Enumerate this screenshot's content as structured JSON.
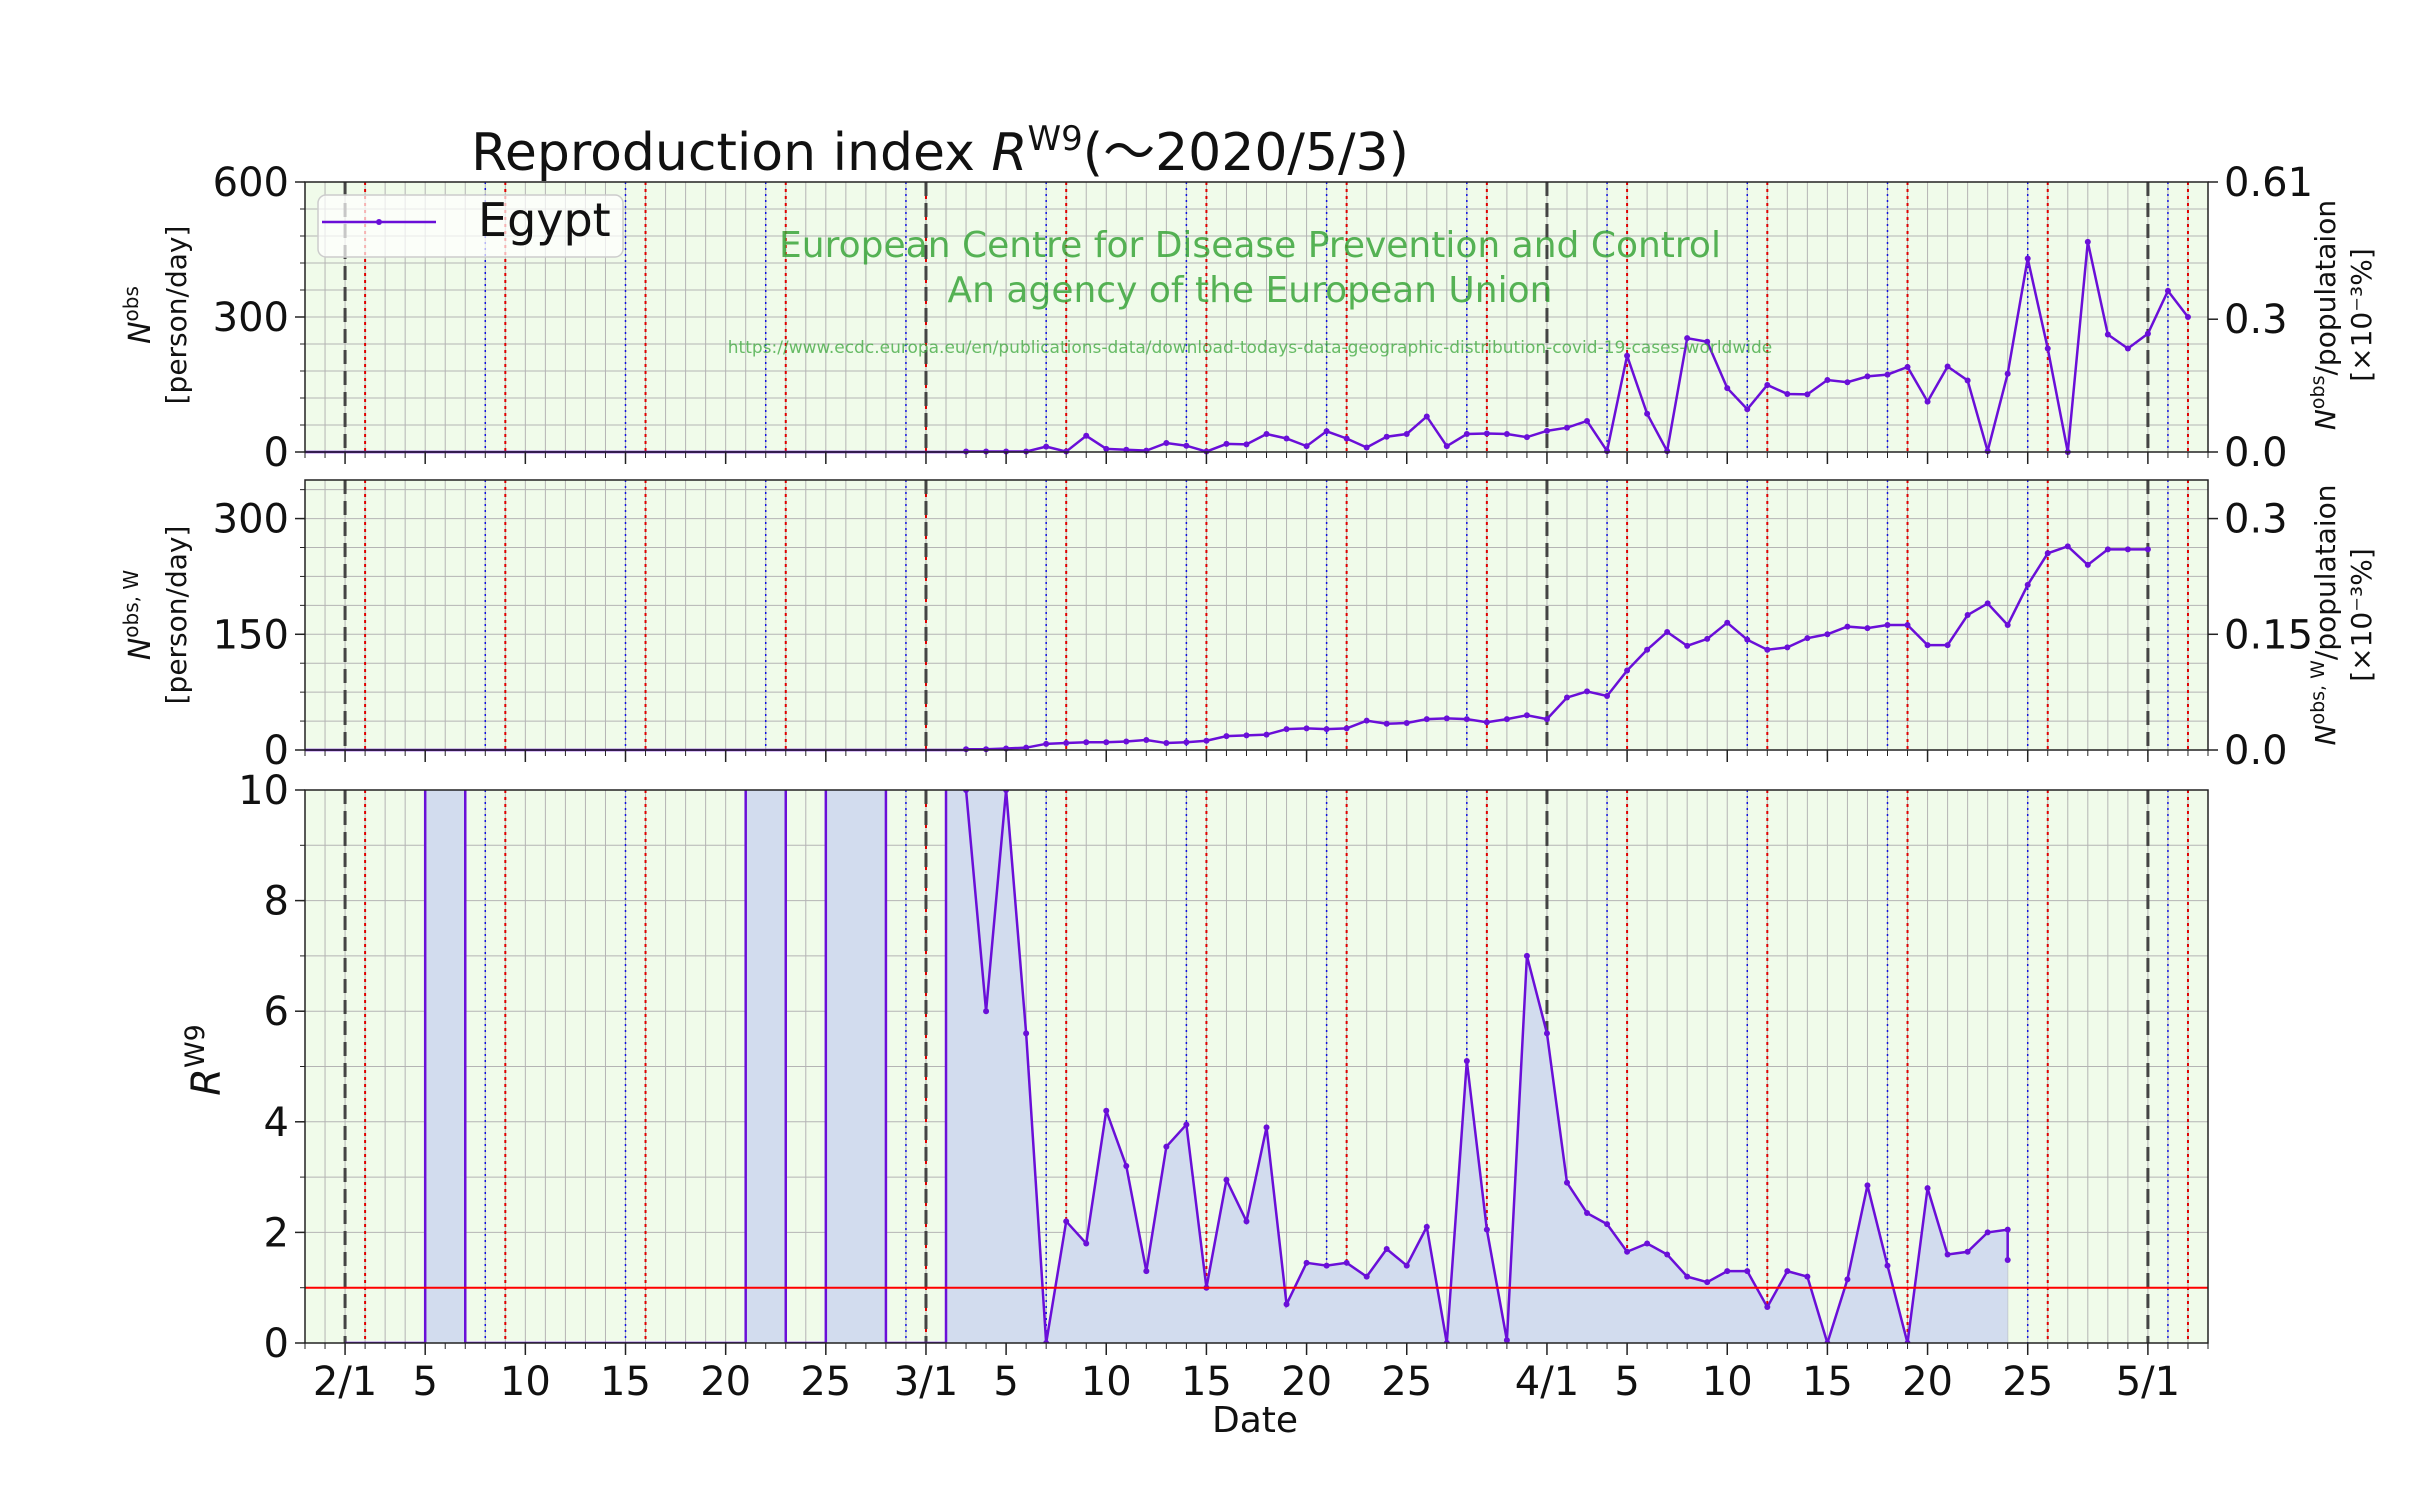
{
  "title": {
    "prefix": "Reproduction index ",
    "var": "R",
    "sup": "W9",
    "suffix": "(～2020/5/3)"
  },
  "legend": {
    "label": "Egypt"
  },
  "watermark": {
    "line1": "European Centre for Disease Prevention and Control",
    "line2": "An agency of the European Union",
    "url": "https://www.ecdc.europa.eu/en/publications-data/download-todays-data-geographic-distribution-covid-19-cases-worldwide"
  },
  "panel1": {
    "ylabel_var": "N",
    "ylabel_sup": "obs",
    "ylabel_unit": "[person/day]",
    "y2label_var": "N",
    "y2label_sup": "obs",
    "y2label_rest": "/populataion",
    "y2label_unit": "[×10⁻³%]",
    "yticks": [
      "0",
      "300",
      "600"
    ],
    "y2ticks": [
      "0.0",
      "0.3",
      "0.61"
    ]
  },
  "panel2": {
    "ylabel_var": "N",
    "ylabel_sup": "obs, W",
    "ylabel_unit": "[person/day]",
    "y2label_var": "N",
    "y2label_sup": "obs, W",
    "y2label_rest": "/populataion",
    "y2label_unit": "[×10⁻³%]",
    "yticks": [
      "0",
      "150",
      "300"
    ],
    "y2ticks": [
      "0.0",
      "0.15",
      "0.3"
    ]
  },
  "panel3": {
    "ylabel_var": "R",
    "ylabel_sup": "W9",
    "yticks": [
      "0",
      "2",
      "4",
      "6",
      "8",
      "10"
    ]
  },
  "xaxis": {
    "label": "Date",
    "ticks": [
      {
        "date": "2020-02-01",
        "label": "2/1"
      },
      {
        "date": "2020-02-05",
        "label": "5"
      },
      {
        "date": "2020-02-10",
        "label": "10"
      },
      {
        "date": "2020-02-15",
        "label": "15"
      },
      {
        "date": "2020-02-20",
        "label": "20"
      },
      {
        "date": "2020-02-25",
        "label": "25"
      },
      {
        "date": "2020-03-01",
        "label": "3/1"
      },
      {
        "date": "2020-03-05",
        "label": "5"
      },
      {
        "date": "2020-03-10",
        "label": "10"
      },
      {
        "date": "2020-03-15",
        "label": "15"
      },
      {
        "date": "2020-03-20",
        "label": "20"
      },
      {
        "date": "2020-03-25",
        "label": "25"
      },
      {
        "date": "2020-04-01",
        "label": "4/1"
      },
      {
        "date": "2020-04-05",
        "label": "5"
      },
      {
        "date": "2020-04-10",
        "label": "10"
      },
      {
        "date": "2020-04-15",
        "label": "15"
      },
      {
        "date": "2020-04-20",
        "label": "20"
      },
      {
        "date": "2020-04-25",
        "label": "25"
      },
      {
        "date": "2020-05-01",
        "label": "5/1"
      }
    ]
  },
  "colors": {
    "line": "#6a0fd8",
    "plot_bg": "#f0fbea",
    "grid": "#b4b4b4",
    "fill": "#d2dcee",
    "fill_edge": "#6a0fd8",
    "threshold": "#ff0000",
    "red_vline": "#e00000",
    "blue_vline": "#1010e0",
    "month_vline": "#444444",
    "watermark": "#3aa53a"
  },
  "chart_data": [
    {
      "type": "line",
      "panel": "top",
      "series_name": "Egypt",
      "ylim": [
        0,
        600
      ],
      "y2lim": [
        0,
        0.61
      ],
      "dates": [
        "2020-03-03",
        "2020-03-04",
        "2020-03-05",
        "2020-03-06",
        "2020-03-07",
        "2020-03-08",
        "2020-03-09",
        "2020-03-10",
        "2020-03-11",
        "2020-03-12",
        "2020-03-13",
        "2020-03-14",
        "2020-03-15",
        "2020-03-16",
        "2020-03-17",
        "2020-03-18",
        "2020-03-19",
        "2020-03-20",
        "2020-03-21",
        "2020-03-22",
        "2020-03-23",
        "2020-03-24",
        "2020-03-25",
        "2020-03-26",
        "2020-03-27",
        "2020-03-28",
        "2020-03-29",
        "2020-03-30",
        "2020-03-31",
        "2020-04-01",
        "2020-04-02",
        "2020-04-03",
        "2020-04-04",
        "2020-04-05",
        "2020-04-06",
        "2020-04-07",
        "2020-04-08",
        "2020-04-09",
        "2020-04-10",
        "2020-04-11",
        "2020-04-12",
        "2020-04-13",
        "2020-04-14",
        "2020-04-15",
        "2020-04-16",
        "2020-04-17",
        "2020-04-18",
        "2020-04-19",
        "2020-04-20",
        "2020-04-21",
        "2020-04-22",
        "2020-04-23",
        "2020-04-24",
        "2020-04-25",
        "2020-04-26",
        "2020-04-27",
        "2020-04-28",
        "2020-04-29",
        "2020-04-30",
        "2020-05-01",
        "2020-05-02",
        "2020-05-03"
      ],
      "values": [
        1,
        1,
        1,
        1,
        12,
        1,
        36,
        7,
        5,
        3,
        20,
        14,
        1,
        18,
        17,
        40,
        30,
        13,
        46,
        30,
        10,
        34,
        40,
        79,
        13,
        40,
        41,
        40,
        33,
        47,
        54,
        69,
        2,
        214,
        85,
        2,
        253,
        245,
        142,
        95,
        149,
        129,
        128,
        160,
        155,
        168,
        172,
        189,
        112,
        190,
        159,
        2,
        174,
        430,
        230,
        0,
        467,
        261,
        230,
        263,
        358,
        300
      ]
    },
    {
      "type": "line",
      "panel": "middle",
      "series_name": "Egypt",
      "ylim": [
        0,
        350
      ],
      "y2lim": [
        0,
        0.35
      ],
      "dates": [
        "2020-03-03",
        "2020-03-04",
        "2020-03-05",
        "2020-03-06",
        "2020-03-07",
        "2020-03-08",
        "2020-03-09",
        "2020-03-10",
        "2020-03-11",
        "2020-03-12",
        "2020-03-13",
        "2020-03-14",
        "2020-03-15",
        "2020-03-16",
        "2020-03-17",
        "2020-03-18",
        "2020-03-19",
        "2020-03-20",
        "2020-03-21",
        "2020-03-22",
        "2020-03-23",
        "2020-03-24",
        "2020-03-25",
        "2020-03-26",
        "2020-03-27",
        "2020-03-28",
        "2020-03-29",
        "2020-03-30",
        "2020-03-31",
        "2020-04-01",
        "2020-04-02",
        "2020-04-03",
        "2020-04-04",
        "2020-04-05",
        "2020-04-06",
        "2020-04-07",
        "2020-04-08",
        "2020-04-09",
        "2020-04-10",
        "2020-04-11",
        "2020-04-12",
        "2020-04-13",
        "2020-04-14",
        "2020-04-15",
        "2020-04-16",
        "2020-04-17",
        "2020-04-18",
        "2020-04-19",
        "2020-04-20",
        "2020-04-21",
        "2020-04-22",
        "2020-04-23",
        "2020-04-24",
        "2020-04-25",
        "2020-04-26",
        "2020-04-27",
        "2020-04-28",
        "2020-04-29",
        "2020-04-30",
        "2020-05-01"
      ],
      "values": [
        1,
        1,
        2,
        3,
        8,
        9,
        10,
        10,
        11,
        13,
        9,
        10,
        12,
        18,
        19,
        20,
        27,
        28,
        27,
        28,
        38,
        34,
        35,
        40,
        41,
        40,
        36,
        40,
        45,
        40,
        68,
        76,
        70,
        103,
        130,
        153,
        135,
        144,
        165,
        143,
        130,
        133,
        145,
        150,
        160,
        158,
        162,
        162,
        136,
        136,
        175,
        190,
        162,
        214,
        255,
        264,
        240,
        260,
        260,
        260
      ]
    },
    {
      "type": "area",
      "panel": "bottom",
      "series_name": "Egypt",
      "ylim": [
        0,
        10
      ],
      "threshold": 1,
      "dates": [
        "2020-02-01",
        "2020-02-02",
        "2020-02-03",
        "2020-02-04",
        "2020-02-05",
        "2020-02-06",
        "2020-02-07",
        "2020-02-08",
        "2020-02-09",
        "2020-02-10",
        "2020-02-11",
        "2020-02-12",
        "2020-02-13",
        "2020-02-14",
        "2020-02-15",
        "2020-02-16",
        "2020-02-17",
        "2020-02-18",
        "2020-02-19",
        "2020-02-20",
        "2020-02-21",
        "2020-02-22",
        "2020-02-23",
        "2020-02-24",
        "2020-02-25",
        "2020-02-26",
        "2020-02-27",
        "2020-02-28",
        "2020-02-29",
        "2020-03-01",
        "2020-03-02",
        "2020-03-03",
        "2020-03-04",
        "2020-03-05",
        "2020-03-06",
        "2020-03-07",
        "2020-03-08",
        "2020-03-09",
        "2020-03-10",
        "2020-03-11",
        "2020-03-12",
        "2020-03-13",
        "2020-03-14",
        "2020-03-15",
        "2020-03-16",
        "2020-03-17",
        "2020-03-18",
        "2020-03-19",
        "2020-03-20",
        "2020-03-21",
        "2020-03-22",
        "2020-03-23",
        "2020-03-24",
        "2020-03-25",
        "2020-03-26",
        "2020-03-27",
        "2020-03-28",
        "2020-03-29",
        "2020-03-30",
        "2020-03-31",
        "2020-04-01",
        "2020-04-02",
        "2020-04-03",
        "2020-04-04",
        "2020-04-05",
        "2020-04-06",
        "2020-04-07",
        "2020-04-08",
        "2020-04-09",
        "2020-04-10",
        "2020-04-11",
        "2020-04-12",
        "2020-04-13",
        "2020-04-14",
        "2020-04-15",
        "2020-04-16",
        "2020-04-17",
        "2020-04-18",
        "2020-04-19",
        "2020-04-20",
        "2020-04-21",
        "2020-04-22",
        "2020-04-23",
        "2020-04-24"
      ],
      "segments": [
        {
          "dates": [
            "2020-02-01",
            "2020-02-02",
            "2020-02-03",
            "2020-02-04",
            "2020-02-05"
          ],
          "values": [
            0,
            0,
            0,
            0,
            0
          ]
        },
        {
          "dates": [
            "2020-02-05",
            "2020-02-06",
            "2020-02-07"
          ],
          "values": [
            10,
            10,
            10
          ],
          "clipped": true
        },
        {
          "dates": [
            "2020-02-07",
            "2020-02-08",
            "2020-02-09",
            "2020-02-10",
            "2020-02-11",
            "2020-02-12",
            "2020-02-13",
            "2020-02-14",
            "2020-02-15",
            "2020-02-16",
            "2020-02-17",
            "2020-02-18",
            "2020-02-19",
            "2020-02-20",
            "2020-02-21"
          ],
          "values": [
            0,
            0,
            0,
            0,
            0,
            0,
            0,
            0,
            0,
            0,
            0,
            0,
            0,
            0,
            0
          ]
        },
        {
          "dates": [
            "2020-02-21",
            "2020-02-22",
            "2020-02-23"
          ],
          "values": [
            10,
            10,
            10
          ],
          "clipped": true
        },
        {
          "dates": [
            "2020-02-23",
            "2020-02-24",
            "2020-02-25"
          ],
          "values": [
            0,
            0,
            0
          ]
        },
        {
          "dates": [
            "2020-02-25",
            "2020-02-26",
            "2020-02-27",
            "2020-02-28"
          ],
          "values": [
            10,
            10,
            10,
            10
          ],
          "clipped": true
        },
        {
          "dates": [
            "2020-02-28",
            "2020-02-29",
            "2020-03-01",
            "2020-03-02"
          ],
          "values": [
            0,
            0,
            0,
            0
          ]
        },
        {
          "dates": [
            "2020-03-02",
            "2020-03-03",
            "2020-03-04",
            "2020-03-05"
          ],
          "values": [
            10,
            10,
            10,
            10
          ],
          "clipped": true
        }
      ],
      "values_from_0303": {
        "dates": [
          "2020-03-03",
          "2020-03-04",
          "2020-03-05",
          "2020-03-06",
          "2020-03-07",
          "2020-03-08",
          "2020-03-09",
          "2020-03-10",
          "2020-03-11",
          "2020-03-12",
          "2020-03-13",
          "2020-03-14",
          "2020-03-15",
          "2020-03-16",
          "2020-03-17",
          "2020-03-18",
          "2020-03-19",
          "2020-03-20",
          "2020-03-21",
          "2020-03-22",
          "2020-03-23",
          "2020-03-24",
          "2020-03-25",
          "2020-03-26",
          "2020-03-27",
          "2020-03-28",
          "2020-03-29",
          "2020-03-30",
          "2020-03-31",
          "2020-04-01",
          "2020-04-02",
          "2020-04-03",
          "2020-04-04",
          "2020-04-05",
          "2020-04-06",
          "2020-04-07",
          "2020-04-08",
          "2020-04-09",
          "2020-04-10",
          "2020-04-11",
          "2020-04-12",
          "2020-04-13",
          "2020-04-14",
          "2020-04-15",
          "2020-04-16",
          "2020-04-17",
          "2020-04-18",
          "2020-04-19",
          "2020-04-20",
          "2020-04-21",
          "2020-04-22",
          "2020-04-23",
          "2020-04-24"
        ],
        "values": [
          10,
          6.0,
          10,
          5.6,
          0,
          2.2,
          1.8,
          4.2,
          3.2,
          1.3,
          3.55,
          3.95,
          1.0,
          2.95,
          2.2,
          3.9,
          0.7,
          1.45,
          1.4,
          1.45,
          1.2,
          1.7,
          1.4,
          2.1,
          0,
          5.1,
          2.05,
          0.05,
          7.0,
          5.6,
          2.9,
          2.35,
          2.15,
          1.65,
          1.8,
          1.6,
          1.2,
          1.1,
          1.3,
          1.3,
          0.65,
          1.3,
          1.2,
          0,
          1.15,
          2.85,
          1.4,
          0,
          2.8,
          1.6,
          1.65,
          2.0,
          2.05
        ]
      },
      "extra": {
        "dates": [
          "2020-04-24"
        ],
        "values": [
          1.5
        ]
      }
    }
  ],
  "vlines": {
    "month": [
      "2020-02-01",
      "2020-03-01",
      "2020-04-01",
      "2020-05-01"
    ],
    "red": [
      "2020-02-02",
      "2020-02-09",
      "2020-02-16",
      "2020-02-23",
      "2020-03-01",
      "2020-03-08",
      "2020-03-15",
      "2020-03-22",
      "2020-03-29",
      "2020-04-05",
      "2020-04-12",
      "2020-04-19",
      "2020-04-26",
      "2020-05-03"
    ],
    "blue": [
      "2020-02-08",
      "2020-02-15",
      "2020-02-22",
      "2020-02-29",
      "2020-03-07",
      "2020-03-14",
      "2020-03-21",
      "2020-03-28",
      "2020-04-04",
      "2020-04-11",
      "2020-04-18",
      "2020-04-25",
      "2020-05-02"
    ]
  },
  "xrange": [
    "2020-01-30",
    "2020-05-04"
  ]
}
